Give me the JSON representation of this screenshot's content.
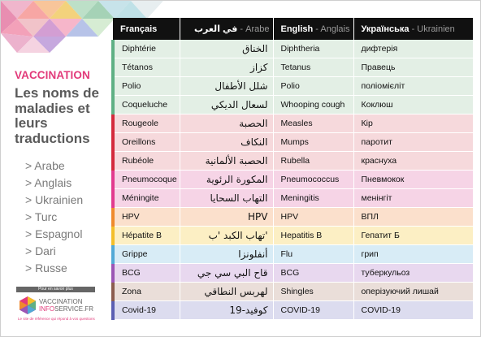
{
  "sidebar": {
    "brand": "VACCINATION",
    "subtitle": "Les noms de maladies et leurs traductions",
    "languages": [
      "> Arabe",
      "> Anglais",
      "> Ukrainien",
      "> Turc",
      "> Espagnol",
      "> Dari",
      "> Russe"
    ],
    "logo": {
      "pour_en_savoir": "Pour en savoir plus",
      "line1": "VACCINATION",
      "line2_a": "INFO",
      "line2_b": "SERVICE.FR",
      "tagline": "Le site de référence qui répond à vos questions"
    }
  },
  "table": {
    "headers": [
      {
        "main": "Français",
        "sub": ""
      },
      {
        "main": "في العرب",
        "sub": " - Arabe"
      },
      {
        "main": "English",
        "sub": " - Anglais"
      },
      {
        "main": "Українська",
        "sub": " - Ukrainien"
      }
    ],
    "rows": [
      {
        "fr": "Diphtérie",
        "ar": "الخناق",
        "en": "Diphtheria",
        "uk": "дифтерія",
        "bg": "#e3efe5",
        "accent": "#5fb084"
      },
      {
        "fr": "Tétanos",
        "ar": "كزاز",
        "en": "Tetanus",
        "uk": "Правець",
        "bg": "#e3efe5",
        "accent": "#5fb084"
      },
      {
        "fr": "Polio",
        "ar": "شلل الأطفال",
        "en": "Polio",
        "uk": "поліомієліт",
        "bg": "#e3efe5",
        "accent": "#5fb084"
      },
      {
        "fr": "Coqueluche",
        "ar": "لسعال الديكي",
        "en": "Whooping cough",
        "uk": "Коклюш",
        "bg": "#e3efe5",
        "accent": "#5fb084"
      },
      {
        "fr": "Rougeole",
        "ar": "الحصبة",
        "en": "Measles",
        "uk": "Кір",
        "bg": "#f6d9dc",
        "accent": "#d42a3c"
      },
      {
        "fr": "Oreillons",
        "ar": "النكاف",
        "en": "Mumps",
        "uk": "паротит",
        "bg": "#f6d9dc",
        "accent": "#d42a3c"
      },
      {
        "fr": "Rubéole",
        "ar": "الحصبة الألمانية",
        "en": "Rubella",
        "uk": "краснуха",
        "bg": "#f6d9dc",
        "accent": "#d42a3c"
      },
      {
        "fr": "Pneumocoque",
        "ar": "المكورة الرئوية",
        "en": "Pneumococcus",
        "uk": "Пневмокок",
        "bg": "#f6d4e6",
        "accent": "#e23a8f"
      },
      {
        "fr": "Méningite",
        "ar": "التهاب السحايا",
        "en": "Meningitis",
        "uk": "менінгіт",
        "bg": "#f6d4e6",
        "accent": "#e23a8f"
      },
      {
        "fr": "HPV",
        "ar": "HPV",
        "en": "HPV",
        "uk": "ВПЛ",
        "bg": "#fbe0cc",
        "accent": "#ef8a2c"
      },
      {
        "fr": "Hépatite B",
        "ar": "'تهاب الكبد 'ب",
        "en": "Hepatitis B",
        "uk": "Гепатит Б",
        "bg": "#fcefc4",
        "accent": "#f3bf2a"
      },
      {
        "fr": "Grippe",
        "ar": "أنفلونزا",
        "en": "Flu",
        "uk": "грип",
        "bg": "#d8ecf6",
        "accent": "#52a9d6"
      },
      {
        "fr": "BCG",
        "ar": "قاح البي سي جي",
        "en": "BCG",
        "uk": "туберкульоз",
        "bg": "#e8d8ef",
        "accent": "#9b55b5"
      },
      {
        "fr": "Zona",
        "ar": "لهربس النطاقي",
        "en": "Shingles",
        "uk": "оперізуючий лишай",
        "bg": "#eaded9",
        "accent": "#8b5c4e"
      },
      {
        "fr": "Covid-19",
        "ar": "كوفيد-19",
        "en": "COVID-19",
        "uk": "COVID-19",
        "bg": "#dcdcef",
        "accent": "#5b5fb3"
      }
    ]
  }
}
